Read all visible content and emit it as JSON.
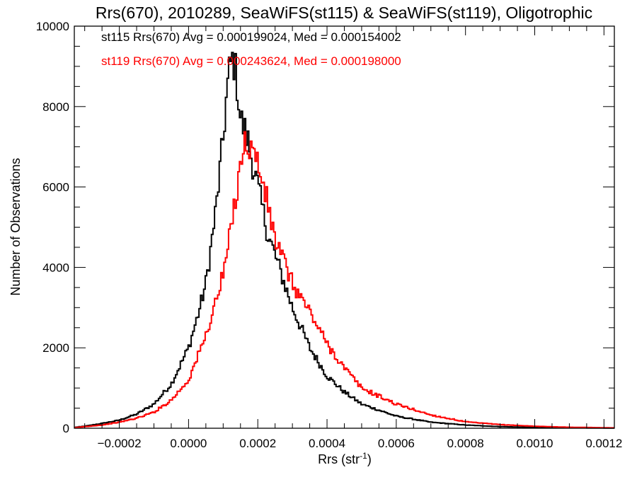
{
  "chart_data": {
    "type": "line",
    "title": "Rrs(670), 2010289, SeaWiFS(st115) & SeaWiFS(st119), Oligotrophic",
    "xlabel_main": "Rrs (str",
    "xlabel_sup": "-1",
    "xlabel_tail": ")",
    "ylabel": "Number of Observations",
    "xlim": [
      -0.00033,
      0.00123
    ],
    "ylim": [
      0,
      10000
    ],
    "x_ticks": [
      {
        "v": -0.0002,
        "label": "−0.0002"
      },
      {
        "v": 0.0,
        "label": "0.0000"
      },
      {
        "v": 0.0002,
        "label": "0.0002"
      },
      {
        "v": 0.0004,
        "label": "0.0004"
      },
      {
        "v": 0.0006,
        "label": "0.0006"
      },
      {
        "v": 0.0008,
        "label": "0.0008"
      },
      {
        "v": 0.001,
        "label": "0.0010"
      },
      {
        "v": 0.0012,
        "label": "0.0012"
      }
    ],
    "y_ticks": [
      {
        "v": 0,
        "label": "0"
      },
      {
        "v": 2000,
        "label": "2000"
      },
      {
        "v": 4000,
        "label": "4000"
      },
      {
        "v": 6000,
        "label": "6000"
      },
      {
        "v": 8000,
        "label": "8000"
      },
      {
        "v": 10000,
        "label": "10000"
      }
    ],
    "annotations": [
      {
        "text": "st115 Rrs(670) Avg = 0.000199024, Med = 0.000154002",
        "color": "#000000"
      },
      {
        "text": "st119 Rrs(670) Avg = 0.000243624, Med = 0.000198000",
        "color": "#ff0000"
      }
    ],
    "series": [
      {
        "color": "#000000",
        "x": [
          -0.00033,
          -0.0003,
          -0.00025,
          -0.0002,
          -0.00015,
          -0.0001,
          -5e-05,
          0.0,
          3e-05,
          5e-05,
          6e-05,
          8e-05,
          0.0001,
          0.00011,
          0.00012,
          0.00013,
          0.00014,
          0.00015,
          0.00017,
          0.0002,
          0.00023,
          0.00025,
          0.0003,
          0.00035,
          0.0004,
          0.00045,
          0.0005,
          0.0006,
          0.0007,
          0.0008,
          0.0009,
          0.001,
          0.0011,
          0.00123
        ],
        "y": [
          20,
          50,
          120,
          200,
          350,
          600,
          1100,
          2000,
          2900,
          3600,
          4200,
          5500,
          7200,
          8300,
          9000,
          9200,
          8600,
          7700,
          7200,
          6000,
          4800,
          4300,
          3000,
          2000,
          1300,
          900,
          600,
          300,
          150,
          80,
          40,
          20,
          10,
          5
        ]
      },
      {
        "color": "#ff0000",
        "x": [
          -0.00033,
          -0.0003,
          -0.00025,
          -0.0002,
          -0.00015,
          -0.0001,
          -5e-05,
          0.0,
          5e-05,
          0.0001,
          0.00012,
          0.00014,
          0.00015,
          0.00016,
          0.00017,
          0.00018,
          0.0002,
          0.00022,
          0.00025,
          0.0003,
          0.00035,
          0.0004,
          0.00045,
          0.0005,
          0.0006,
          0.0007,
          0.0008,
          0.0009,
          0.001,
          0.0011,
          0.00123
        ],
        "y": [
          10,
          40,
          80,
          150,
          250,
          400,
          700,
          1200,
          2300,
          3800,
          4800,
          6000,
          6700,
          7000,
          7100,
          7000,
          6600,
          5900,
          4700,
          3600,
          2900,
          2100,
          1500,
          1000,
          600,
          330,
          160,
          90,
          50,
          25,
          10
        ]
      }
    ]
  }
}
